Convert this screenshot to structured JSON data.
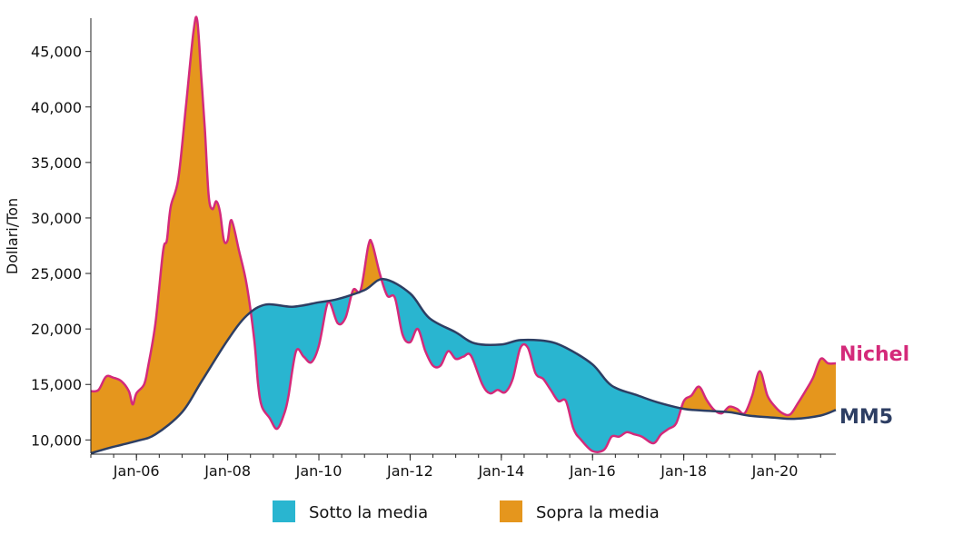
{
  "chart_data": {
    "type": "area",
    "ylabel": "Dollari/Ton",
    "ylim": [
      8800,
      48000
    ],
    "yticks": [
      10000,
      15000,
      20000,
      25000,
      30000,
      35000,
      40000,
      45000
    ],
    "ytick_labels": [
      "10,000",
      "15,000",
      "20,000",
      "25,000",
      "30,000",
      "35,000",
      "40,000",
      "45,000"
    ],
    "xlim": [
      "2005-01",
      "2021-05"
    ],
    "xticks": [
      "2006-01",
      "2008-01",
      "2010-01",
      "2012-01",
      "2014-01",
      "2016-01",
      "2018-01",
      "2020-01"
    ],
    "xtick_labels": [
      "Jan-06",
      "Jan-08",
      "Jan-10",
      "Jan-12",
      "Jan-14",
      "Jan-16",
      "Jan-18",
      "Jan-20"
    ],
    "series": [
      {
        "name": "Nichel",
        "color": "#d42a7a",
        "points": [
          [
            "2005-01",
            14400
          ],
          [
            "2005-03",
            14500
          ],
          [
            "2005-05",
            15700
          ],
          [
            "2005-07",
            15600
          ],
          [
            "2005-09",
            15300
          ],
          [
            "2005-11",
            14400
          ],
          [
            "2005-12",
            13200
          ],
          [
            "2006-01",
            14200
          ],
          [
            "2006-03",
            15000
          ],
          [
            "2006-04",
            16500
          ],
          [
            "2006-06",
            20500
          ],
          [
            "2006-08",
            27000
          ],
          [
            "2006-09",
            28000
          ],
          [
            "2006-10",
            31000
          ],
          [
            "2006-12",
            33500
          ],
          [
            "2007-02",
            40000
          ],
          [
            "2007-04",
            46800
          ],
          [
            "2007-05",
            47800
          ],
          [
            "2007-06",
            43000
          ],
          [
            "2007-07",
            38000
          ],
          [
            "2007-08",
            32000
          ],
          [
            "2007-09",
            30800
          ],
          [
            "2007-10",
            31500
          ],
          [
            "2007-11",
            30500
          ],
          [
            "2007-12",
            28000
          ],
          [
            "2008-01",
            28000
          ],
          [
            "2008-02",
            29800
          ],
          [
            "2008-04",
            27000
          ],
          [
            "2008-06",
            24000
          ],
          [
            "2008-08",
            19000
          ],
          [
            "2008-09",
            15000
          ],
          [
            "2008-10",
            13000
          ],
          [
            "2008-12",
            12000
          ],
          [
            "2009-02",
            11000
          ],
          [
            "2009-04",
            12500
          ],
          [
            "2009-05",
            14000
          ],
          [
            "2009-07",
            18000
          ],
          [
            "2009-09",
            17500
          ],
          [
            "2009-11",
            17000
          ],
          [
            "2010-01",
            18500
          ],
          [
            "2010-03",
            22000
          ],
          [
            "2010-04",
            22300
          ],
          [
            "2010-06",
            20500
          ],
          [
            "2010-08",
            21000
          ],
          [
            "2010-10",
            23500
          ],
          [
            "2010-12",
            23500
          ],
          [
            "2011-02",
            27500
          ],
          [
            "2011-03",
            27700
          ],
          [
            "2011-05",
            25000
          ],
          [
            "2011-07",
            23000
          ],
          [
            "2011-09",
            22800
          ],
          [
            "2011-11",
            19500
          ],
          [
            "2012-01",
            18800
          ],
          [
            "2012-03",
            20000
          ],
          [
            "2012-05",
            18000
          ],
          [
            "2012-07",
            16700
          ],
          [
            "2012-09",
            16700
          ],
          [
            "2012-11",
            18000
          ],
          [
            "2013-01",
            17300
          ],
          [
            "2013-03",
            17500
          ],
          [
            "2013-05",
            17600
          ],
          [
            "2013-08",
            15000
          ],
          [
            "2013-10",
            14200
          ],
          [
            "2013-12",
            14500
          ],
          [
            "2014-02",
            14300
          ],
          [
            "2014-04",
            15500
          ],
          [
            "2014-06",
            18300
          ],
          [
            "2014-08",
            18300
          ],
          [
            "2014-10",
            16000
          ],
          [
            "2014-12",
            15500
          ],
          [
            "2015-02",
            14500
          ],
          [
            "2015-04",
            13500
          ],
          [
            "2015-06",
            13500
          ],
          [
            "2015-08",
            11000
          ],
          [
            "2015-10",
            10000
          ],
          [
            "2016-01",
            9000
          ],
          [
            "2016-04",
            9100
          ],
          [
            "2016-06",
            10300
          ],
          [
            "2016-08",
            10300
          ],
          [
            "2016-10",
            10700
          ],
          [
            "2016-12",
            10500
          ],
          [
            "2017-02",
            10300
          ],
          [
            "2017-05",
            9700
          ],
          [
            "2017-07",
            10500
          ],
          [
            "2017-09",
            11000
          ],
          [
            "2017-11",
            11500
          ],
          [
            "2018-01",
            13500
          ],
          [
            "2018-03",
            14000
          ],
          [
            "2018-05",
            14800
          ],
          [
            "2018-07",
            13600
          ],
          [
            "2018-09",
            12700
          ],
          [
            "2018-11",
            12400
          ],
          [
            "2019-01",
            13000
          ],
          [
            "2019-03",
            12800
          ],
          [
            "2019-05",
            12400
          ],
          [
            "2019-07",
            14000
          ],
          [
            "2019-09",
            16200
          ],
          [
            "2019-11",
            14000
          ],
          [
            "2020-01",
            13000
          ],
          [
            "2020-03",
            12400
          ],
          [
            "2020-05",
            12300
          ],
          [
            "2020-07",
            13300
          ],
          [
            "2020-09",
            14400
          ],
          [
            "2020-11",
            15600
          ],
          [
            "2021-01",
            17300
          ],
          [
            "2021-03",
            16900
          ],
          [
            "2021-05",
            16900
          ]
        ]
      },
      {
        "name": "MM5",
        "color": "#2d3e63",
        "points": [
          [
            "2005-01",
            8800
          ],
          [
            "2005-06",
            9300
          ],
          [
            "2006-01",
            9900
          ],
          [
            "2006-06",
            10500
          ],
          [
            "2007-01",
            12500
          ],
          [
            "2007-06",
            15200
          ],
          [
            "2008-01",
            19000
          ],
          [
            "2008-06",
            21200
          ],
          [
            "2008-11",
            22200
          ],
          [
            "2009-06",
            22000
          ],
          [
            "2010-01",
            22400
          ],
          [
            "2010-06",
            22700
          ],
          [
            "2011-01",
            23500
          ],
          [
            "2011-06",
            24500
          ],
          [
            "2012-01",
            23200
          ],
          [
            "2012-06",
            21000
          ],
          [
            "2013-01",
            19700
          ],
          [
            "2013-06",
            18700
          ],
          [
            "2014-01",
            18600
          ],
          [
            "2014-06",
            19000
          ],
          [
            "2015-01",
            18900
          ],
          [
            "2015-06",
            18300
          ],
          [
            "2016-01",
            16800
          ],
          [
            "2016-06",
            14900
          ],
          [
            "2017-01",
            14000
          ],
          [
            "2017-06",
            13400
          ],
          [
            "2018-01",
            12800
          ],
          [
            "2018-06",
            12650
          ],
          [
            "2019-01",
            12500
          ],
          [
            "2019-06",
            12200
          ],
          [
            "2020-01",
            12000
          ],
          [
            "2020-06",
            11900
          ],
          [
            "2021-01",
            12200
          ],
          [
            "2021-05",
            12700
          ]
        ]
      }
    ],
    "legend": {
      "placement": "bottom-center",
      "entries": [
        {
          "label": "Sotto la media",
          "color": "#29b5d0"
        },
        {
          "label": "Sopra la media",
          "color": "#e5961d"
        }
      ]
    },
    "grid": false
  }
}
